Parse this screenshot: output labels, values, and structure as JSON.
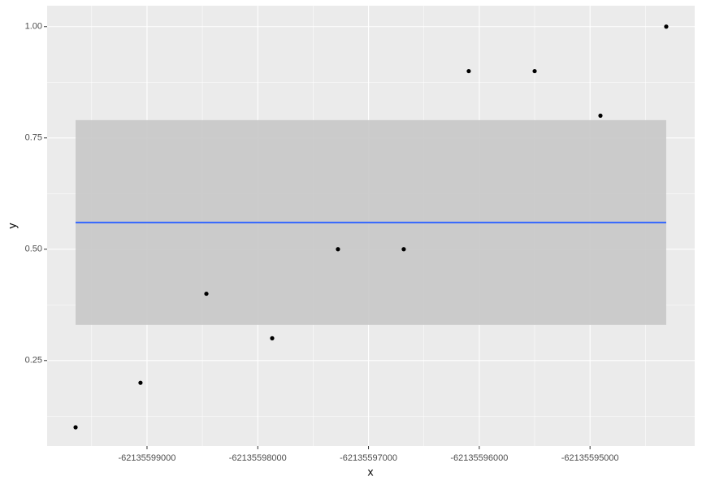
{
  "chart_data": {
    "type": "scatter",
    "x_label": "x",
    "y_label": "y",
    "x": [
      -62135599645,
      -62135599059,
      -62135598464,
      -62135597870,
      -62135597276,
      -62135596682,
      -62135596095,
      -62135595500,
      -62135594906,
      -62135594312
    ],
    "values": [
      0.1,
      0.2,
      0.4,
      0.3,
      0.5,
      0.5,
      0.9,
      0.9,
      0.8,
      1.0
    ],
    "color": "#000000",
    "smooth": {
      "color": "#3366FF",
      "band_color": "#C8C8C8",
      "values": [
        0.56,
        0.56,
        0.56,
        0.56,
        0.56,
        0.56,
        0.56,
        0.56,
        0.56,
        0.56
      ],
      "lower": [
        0.33,
        0.33,
        0.33,
        0.33,
        0.33,
        0.33,
        0.33,
        0.33,
        0.33,
        0.33
      ],
      "upper": [
        0.79,
        0.79,
        0.79,
        0.79,
        0.79,
        0.79,
        0.79,
        0.79,
        0.79,
        0.79
      ]
    },
    "xlim": [
      -62135599902,
      -62135594055
    ],
    "ylim": [
      0.058,
      1.047
    ],
    "xticks": [
      -62135599000,
      -62135598000,
      -62135597000,
      -62135596000,
      -62135595000
    ],
    "yticks": [
      {
        "value": 0.25,
        "label": "0.25"
      },
      {
        "value": 0.5,
        "label": "0.50"
      },
      {
        "value": 0.75,
        "label": "0.75"
      },
      {
        "value": 1.0,
        "label": "1.00"
      }
    ],
    "grid": true
  }
}
